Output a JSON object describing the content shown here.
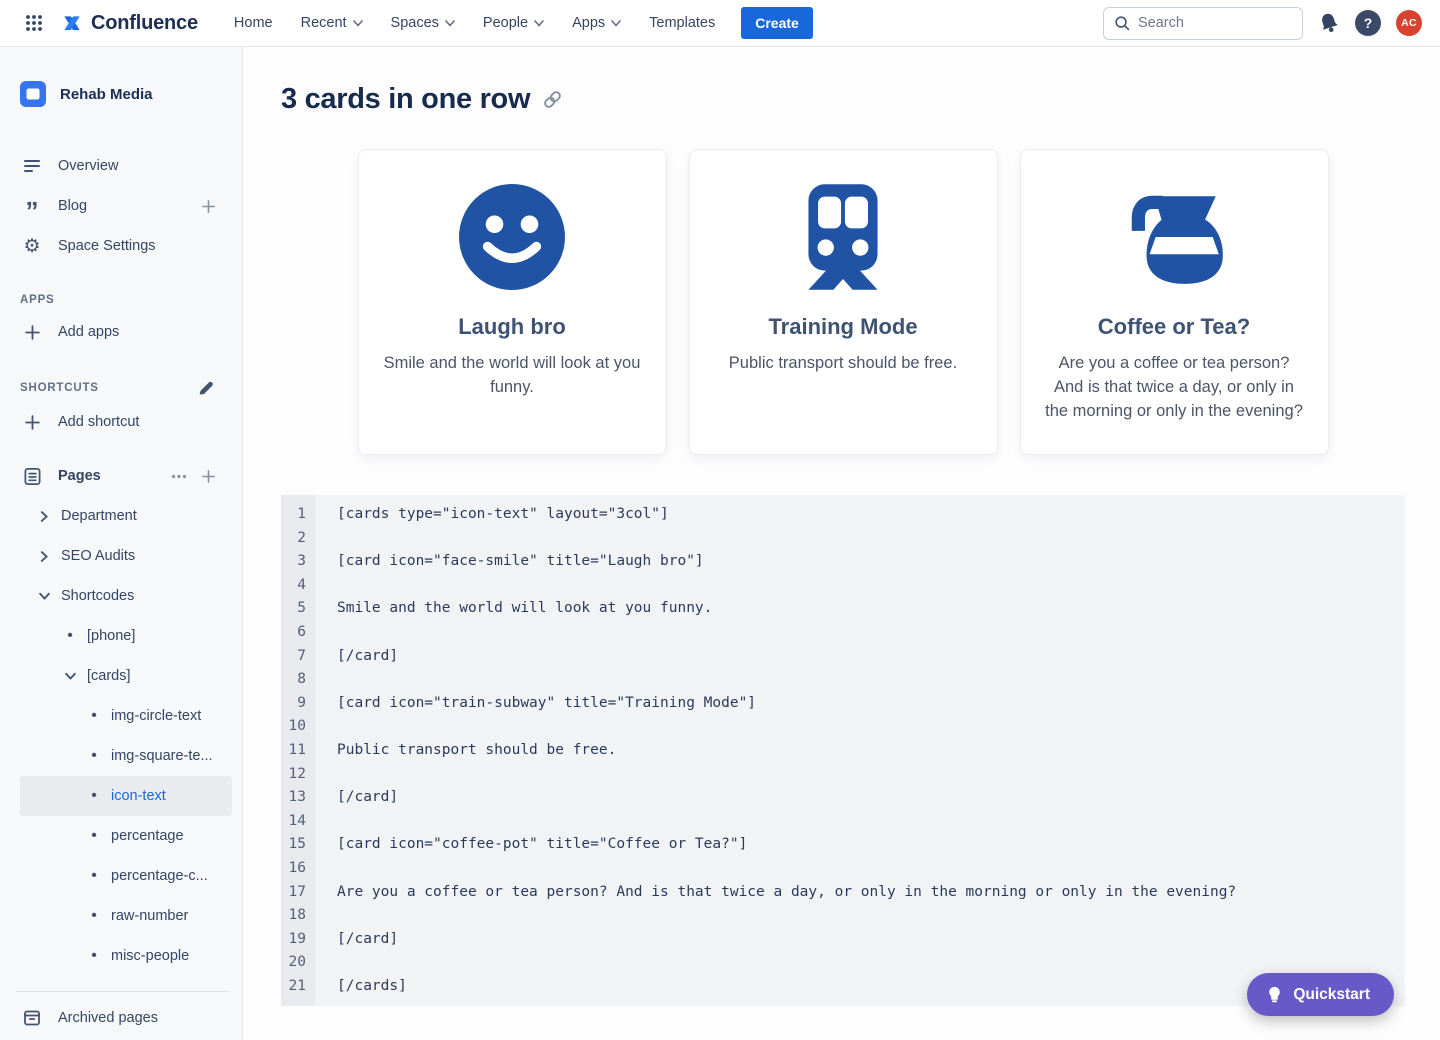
{
  "colors": {
    "brand_blue": "#1868DB",
    "icon_blue": "#2053A4",
    "quickstart_purple": "#6759C7",
    "avatar_red": "#D8432F",
    "heading_navy": "#172B4D"
  },
  "top_nav": {
    "logo_text": "Confluence",
    "items": [
      {
        "label": "Home",
        "dropdown": false
      },
      {
        "label": "Recent",
        "dropdown": true
      },
      {
        "label": "Spaces",
        "dropdown": true
      },
      {
        "label": "People",
        "dropdown": true
      },
      {
        "label": "Apps",
        "dropdown": true
      },
      {
        "label": "Templates",
        "dropdown": false
      }
    ],
    "create_label": "Create",
    "search_placeholder": "Search",
    "help_glyph": "?",
    "avatar_initials": "AC",
    "icons": [
      "app-switcher-grid",
      "confluence-logo",
      "search",
      "bell",
      "help",
      "avatar"
    ]
  },
  "sidebar": {
    "space_name": "Rehab Media",
    "nav": [
      {
        "label": "Overview",
        "icon": "overview-lines"
      },
      {
        "label": "Blog",
        "icon": "quote",
        "has_add": true
      },
      {
        "label": "Space Settings",
        "icon": "gear"
      }
    ],
    "quote_glyph": "”",
    "gear_glyph": "⚙",
    "apps_heading": "APPS",
    "add_apps_label": "Add apps",
    "shortcuts_heading": "SHORTCUTS",
    "add_shortcut_label": "Add shortcut",
    "pages_label": "Pages",
    "bullet_glyph": "•",
    "tree": [
      {
        "label": "Department",
        "state": "collapsed",
        "depth": 1
      },
      {
        "label": "SEO Audits",
        "state": "collapsed",
        "depth": 1
      },
      {
        "label": "Shortcodes",
        "state": "expanded",
        "depth": 1
      },
      {
        "label": "[phone]",
        "state": "leaf",
        "depth": 2
      },
      {
        "label": "[cards]",
        "state": "expanded",
        "depth": 2
      },
      {
        "label": "img-circle-text",
        "state": "leaf",
        "depth": 3
      },
      {
        "label": "img-square-te...",
        "state": "leaf",
        "depth": 3
      },
      {
        "label": "icon-text",
        "state": "leaf",
        "depth": 3,
        "selected": true
      },
      {
        "label": "percentage",
        "state": "leaf",
        "depth": 3
      },
      {
        "label": "percentage-c...",
        "state": "leaf",
        "depth": 3
      },
      {
        "label": "raw-number",
        "state": "leaf",
        "depth": 3
      },
      {
        "label": "misc-people",
        "state": "leaf",
        "depth": 3
      }
    ],
    "archived_label": "Archived pages"
  },
  "content": {
    "title": "3 cards in one row",
    "cards": [
      {
        "icon": "face-smile",
        "title": "Laugh bro",
        "text": "Smile and the world will look at you funny."
      },
      {
        "icon": "train-subway",
        "title": "Training Mode",
        "text": "Public transport should be free."
      },
      {
        "icon": "coffee-pot",
        "title": "Coffee or Tea?",
        "text": "Are you a coffee or tea person? And is that twice a day, or only in the morning or only in the evening?"
      }
    ],
    "code": {
      "lines": [
        "[cards type=\"icon-text\" layout=\"3col\"]",
        "",
        "[card icon=\"face-smile\" title=\"Laugh bro\"]",
        "",
        "Smile and the world will look at you funny.",
        "",
        "[/card]",
        "",
        "[card icon=\"train-subway\" title=\"Training Mode\"]",
        "",
        "Public transport should be free.",
        "",
        "[/card]",
        "",
        "[card icon=\"coffee-pot\" title=\"Coffee or Tea?\"]",
        "",
        "Are you a coffee or tea person? And is that twice a day, or only in the morning or only in the evening?",
        "",
        "[/card]",
        "",
        "[/cards]"
      ]
    },
    "quickstart_label": "Quickstart"
  }
}
